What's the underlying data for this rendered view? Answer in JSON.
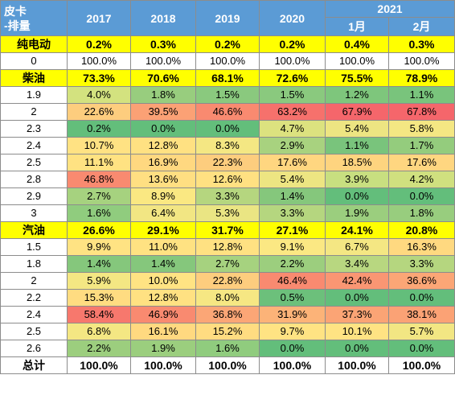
{
  "header": {
    "corner_line1": "皮卡",
    "corner_line2": "-排量",
    "years": [
      "2017",
      "2018",
      "2019",
      "2020"
    ],
    "year_2021": "2021",
    "months_2021": [
      "1月",
      "2月"
    ]
  },
  "rows": [
    {
      "label": "纯电动",
      "style": "hl",
      "values": [
        "0.2%",
        "0.3%",
        "0.2%",
        "0.2%",
        "0.4%",
        "0.3%"
      ]
    },
    {
      "label": "0",
      "style": "plain",
      "values": [
        "100.0%",
        "100.0%",
        "100.0%",
        "100.0%",
        "100.0%",
        "100.0%"
      ]
    },
    {
      "label": "柴油",
      "style": "hl",
      "values": [
        "73.3%",
        "70.6%",
        "68.1%",
        "72.6%",
        "75.5%",
        "78.9%"
      ]
    },
    {
      "label": "1.9",
      "style": "heat",
      "values": [
        "4.0%",
        "1.8%",
        "1.5%",
        "1.5%",
        "1.2%",
        "1.1%"
      ],
      "colors": [
        "#d3e27f",
        "#98cd7e",
        "#8ac97e",
        "#8ac97e",
        "#7ec67c",
        "#79c47c"
      ]
    },
    {
      "label": "2",
      "style": "heat",
      "values": [
        "22.6%",
        "39.5%",
        "46.6%",
        "63.2%",
        "67.9%",
        "67.8%"
      ],
      "colors": [
        "#fdcd7e",
        "#fba175",
        "#f98a70",
        "#f6716c",
        "#f5666b",
        "#f5666b"
      ]
    },
    {
      "label": "2.3",
      "style": "heat",
      "values": [
        "0.2%",
        "0.0%",
        "0.0%",
        "4.7%",
        "5.4%",
        "5.8%"
      ],
      "colors": [
        "#63be7b",
        "#63be7b",
        "#63be7b",
        "#dce27f",
        "#ede582",
        "#f4e783"
      ]
    },
    {
      "label": "2.4",
      "style": "heat",
      "values": [
        "10.7%",
        "12.8%",
        "8.3%",
        "2.9%",
        "1.1%",
        "1.7%"
      ],
      "colors": [
        "#ffe283",
        "#ffe182",
        "#f4e783",
        "#a8d27f",
        "#79c47c",
        "#94cc7d"
      ]
    },
    {
      "label": "2.5",
      "style": "heat",
      "values": [
        "11.1%",
        "16.9%",
        "22.3%",
        "17.6%",
        "18.5%",
        "17.6%"
      ],
      "colors": [
        "#ffe282",
        "#ffd880",
        "#fdcd7e",
        "#ffd680",
        "#fed47f",
        "#ffd680"
      ]
    },
    {
      "label": "2.8",
      "style": "heat",
      "values": [
        "46.8%",
        "13.6%",
        "12.6%",
        "5.4%",
        "3.9%",
        "4.2%"
      ],
      "colors": [
        "#f98a70",
        "#ffdf82",
        "#ffe182",
        "#ede582",
        "#c8df80",
        "#d0e07f"
      ]
    },
    {
      "label": "2.9",
      "style": "heat",
      "values": [
        "2.7%",
        "8.9%",
        "3.3%",
        "1.4%",
        "0.0%",
        "0.0%"
      ],
      "colors": [
        "#a6d27f",
        "#fae882",
        "#b5d67f",
        "#85c77c",
        "#63be7b",
        "#63be7b"
      ]
    },
    {
      "label": "3",
      "style": "heat",
      "values": [
        "1.6%",
        "6.4%",
        "5.3%",
        "3.3%",
        "1.9%",
        "1.8%"
      ],
      "colors": [
        "#90cc7e",
        "#f2e683",
        "#eae583",
        "#b5d67f",
        "#9bce7e",
        "#98cd7e"
      ]
    },
    {
      "label": "汽油",
      "style": "hl",
      "values": [
        "26.6%",
        "29.1%",
        "31.7%",
        "27.1%",
        "24.1%",
        "20.8%"
      ]
    },
    {
      "label": "1.5",
      "style": "heat",
      "values": [
        "9.9%",
        "11.0%",
        "12.8%",
        "9.1%",
        "6.7%",
        "16.3%"
      ],
      "colors": [
        "#ffe383",
        "#ffe282",
        "#ffe182",
        "#fbe883",
        "#f4e783",
        "#ffd980"
      ]
    },
    {
      "label": "1.8",
      "style": "heat",
      "values": [
        "1.4%",
        "1.4%",
        "2.7%",
        "2.2%",
        "3.4%",
        "3.3%"
      ],
      "colors": [
        "#85c77c",
        "#85c77c",
        "#a6d27f",
        "#9cce7e",
        "#b8d780",
        "#b5d67f"
      ]
    },
    {
      "label": "2",
      "style": "heat",
      "values": [
        "5.9%",
        "10.0%",
        "22.8%",
        "46.4%",
        "42.4%",
        "36.6%"
      ],
      "colors": [
        "#f4e783",
        "#ffe383",
        "#fdcd7e",
        "#f98a70",
        "#fa9673",
        "#fba676"
      ]
    },
    {
      "label": "2.2",
      "style": "heat",
      "values": [
        "15.3%",
        "12.8%",
        "8.0%",
        "0.5%",
        "0.0%",
        "0.0%"
      ],
      "colors": [
        "#ffdc81",
        "#ffe182",
        "#f6e783",
        "#6cc07b",
        "#63be7b",
        "#63be7b"
      ]
    },
    {
      "label": "2.4",
      "style": "heat",
      "values": [
        "58.4%",
        "46.9%",
        "36.8%",
        "31.9%",
        "37.3%",
        "38.1%"
      ],
      "colors": [
        "#f7786d",
        "#f98a70",
        "#fba676",
        "#fcb378",
        "#fba475",
        "#fba275"
      ]
    },
    {
      "label": "2.5",
      "style": "heat",
      "values": [
        "6.8%",
        "16.1%",
        "15.2%",
        "9.7%",
        "10.1%",
        "5.7%"
      ],
      "colors": [
        "#f4e783",
        "#ffd980",
        "#ffdc81",
        "#ffe383",
        "#ffe383",
        "#f2e683"
      ]
    },
    {
      "label": "2.6",
      "style": "heat",
      "values": [
        "2.2%",
        "1.9%",
        "1.6%",
        "0.0%",
        "0.0%",
        "0.0%"
      ],
      "colors": [
        "#9cce7e",
        "#9bce7e",
        "#90cc7e",
        "#63be7b",
        "#63be7b",
        "#63be7b"
      ]
    },
    {
      "label": "总计",
      "style": "tot",
      "values": [
        "100.0%",
        "100.0%",
        "100.0%",
        "100.0%",
        "100.0%",
        "100.0%"
      ]
    }
  ]
}
